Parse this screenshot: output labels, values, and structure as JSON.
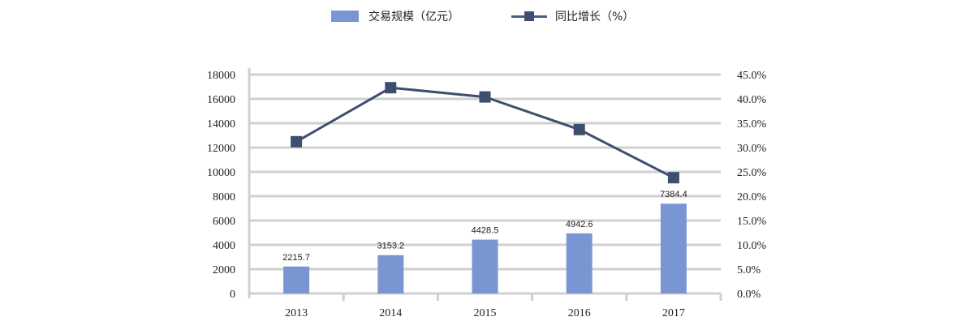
{
  "legend": {
    "bar_label": "交易规模（亿元）",
    "line_label": "同比增长（%）"
  },
  "colors": {
    "bar": "#7a96d2",
    "line": "#3e4e6e",
    "grid": "#d0d0d0"
  },
  "chart_data": {
    "type": "bar+line",
    "title": "",
    "categories": [
      "2013",
      "2014",
      "2015",
      "2016",
      "2017"
    ],
    "series": [
      {
        "name": "交易规模（亿元）",
        "type": "bar",
        "axis": "left",
        "values": [
          2215.7,
          3153.2,
          4428.5,
          4942.6,
          7384.4
        ],
        "labels": [
          "2215.7",
          "3153.2",
          "4428.5",
          "4942.6",
          "7384.4"
        ]
      },
      {
        "name": "同比增长（%）",
        "type": "line",
        "axis": "right",
        "values": [
          31.2,
          42.3,
          40.4,
          33.7,
          23.8
        ]
      }
    ],
    "left_axis": {
      "min": 0,
      "max": 18000,
      "step": 2000,
      "ticks": [
        "0",
        "2000",
        "4000",
        "6000",
        "8000",
        "10000",
        "12000",
        "14000",
        "16000",
        "18000"
      ]
    },
    "right_axis": {
      "min": 0,
      "max": 45,
      "step": 5,
      "ticks": [
        "0.0%",
        "5.0%",
        "10.0%",
        "15.0%",
        "20.0%",
        "25.0%",
        "30.0%",
        "35.0%",
        "40.0%",
        "45.0%"
      ]
    },
    "xlabel": "",
    "ylabel": "",
    "grid": true,
    "legend_position": "top"
  }
}
